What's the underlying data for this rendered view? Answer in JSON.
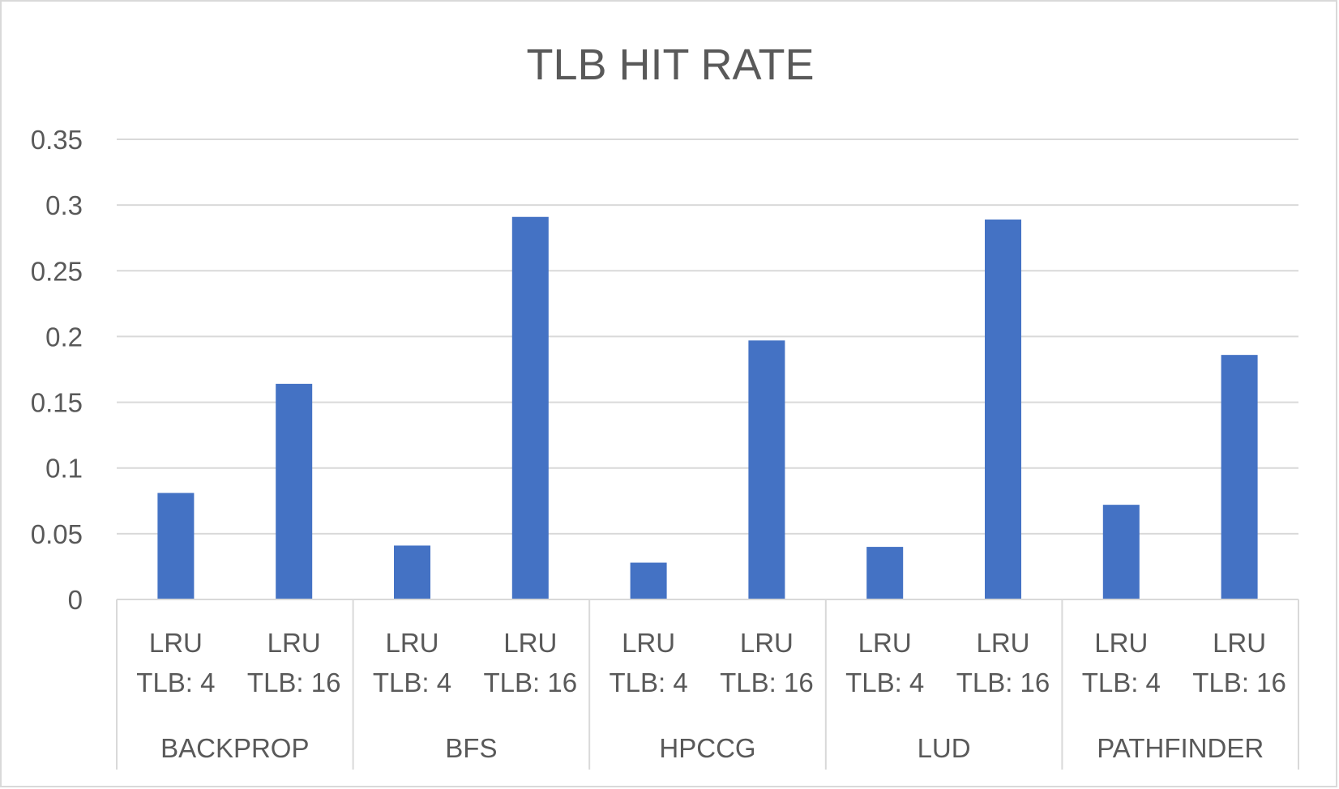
{
  "chart_data": {
    "type": "bar",
    "title": "TLB HIT RATE",
    "xlabel": "",
    "ylabel": "",
    "ylim": [
      0,
      0.35
    ],
    "y_ticks": [
      "0",
      "0.05",
      "0.1",
      "0.15",
      "0.2",
      "0.25",
      "0.3",
      "0.35"
    ],
    "grid": true,
    "legend": "none",
    "bar_color": "#4472C4",
    "groups": [
      "BACKPROP",
      "BFS",
      "HPCCG",
      "LUD",
      "PATHFINDER"
    ],
    "sub_categories": [
      {
        "line1": "LRU",
        "line2": "TLB: 4"
      },
      {
        "line1": "LRU",
        "line2": "TLB: 16"
      }
    ],
    "categories": [
      "BACKPROP / LRU TLB: 4",
      "BACKPROP / LRU TLB: 16",
      "BFS / LRU TLB: 4",
      "BFS / LRU TLB: 16",
      "HPCCG / LRU TLB: 4",
      "HPCCG / LRU TLB: 16",
      "LUD / LRU TLB: 4",
      "LUD / LRU TLB: 16",
      "PATHFINDER / LRU TLB: 4",
      "PATHFINDER / LRU TLB: 16"
    ],
    "values": [
      0.081,
      0.164,
      0.041,
      0.291,
      0.028,
      0.197,
      0.04,
      0.289,
      0.072,
      0.186
    ]
  }
}
